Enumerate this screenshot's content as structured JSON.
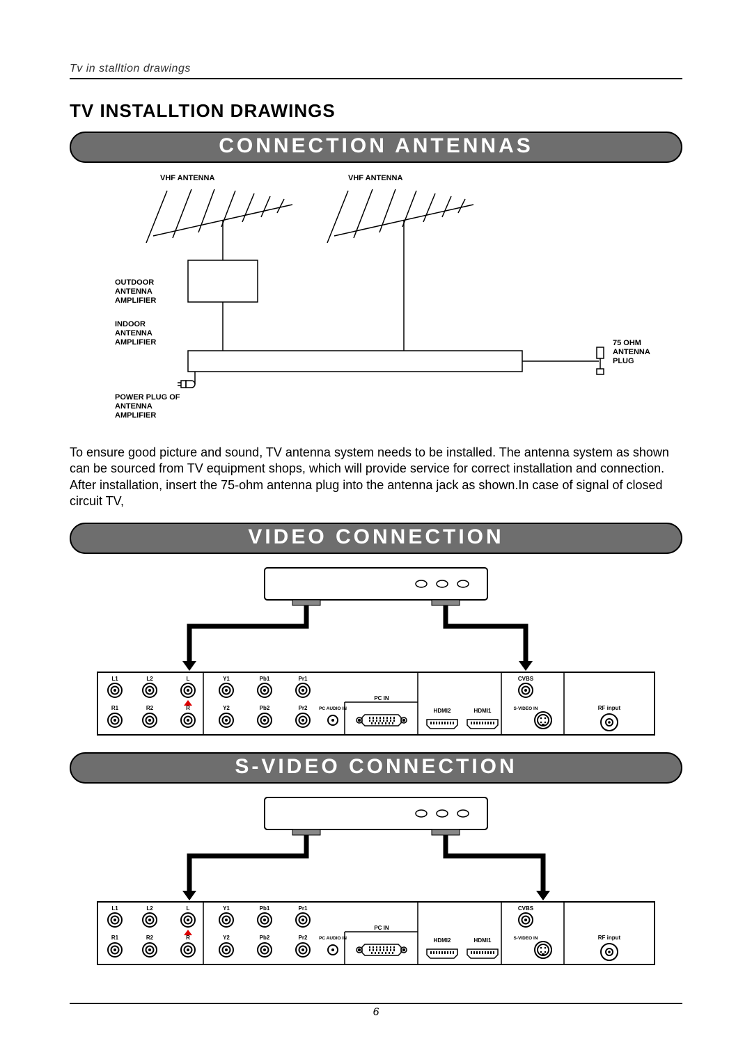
{
  "header": {
    "breadcrumb": "Tv in stalltion drawings"
  },
  "title": "TV INSTALLTION DRAWINGS",
  "colors": {
    "banner_bg": "#6e6e6e",
    "banner_text": "#ffffff",
    "rule": "#000000",
    "page_bg": "#ffffff",
    "diagram_stroke": "#000000"
  },
  "banners": {
    "antennas": "CONNECTION ANTENNAS",
    "video": "VIDEO   CONNECTION",
    "svideo": "S-VIDEO   CONNECTION"
  },
  "antenna_diagram": {
    "labels": {
      "vhf1": "VHF    ANTENNA",
      "vhf2": "VHF    ANTENNA",
      "outdoor": "OUTDOOR\nANTENNA\nAMPLIFIER",
      "indoor": "INDOOR\nANTENNA\nAMPLIFIER",
      "power_plug": "POWER  PLUG  OF\nANTENNA\nAMPLIFIER",
      "ohm_plug": "75 OHM\nANTENNA\nPLUG"
    }
  },
  "caption_text": "To ensure good picture and sound, TV antenna system needs to be installed. The antenna system as  shown can be sourced from TV equipment shops, which will provide service for correct installation and connection. After installation, insert the 75-ohm antenna plug into the antenna jack as shown.In case of signal of closed circuit TV,",
  "panel": {
    "top_row": [
      "L1",
      "L2",
      "L",
      "Y1",
      "Pb1",
      "Pr1"
    ],
    "bottom_row": [
      "R1",
      "R2",
      "R",
      "Y2",
      "Pb2",
      "Pr2"
    ],
    "pc_audio": "PC AUDIO IN",
    "pc_in": "PC IN",
    "hdmi2": "HDMI2",
    "hdmi1": "HDMI1",
    "cvbs": "CVBS",
    "svideo": "S-VIDEO IN",
    "rf": "RF input"
  },
  "footer": {
    "page_number": "6"
  }
}
